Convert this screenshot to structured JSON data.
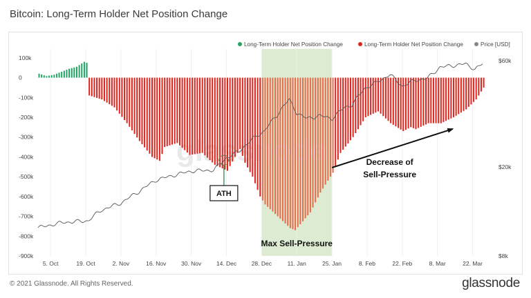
{
  "page": {
    "title": "Bitcoin: Long-Term Holder Net Position Change",
    "footer_copyright": "© 2021 Glassnode. All Rights Reserved.",
    "footer_logo": "glassnode",
    "watermark": "glassnode"
  },
  "colors": {
    "positive": "#1fa463",
    "negative": "#e0231b",
    "negative_highlight": "#ea6a4a",
    "price_line": "#555555",
    "highlight_zone": "#dcebd2",
    "arrow": "#111111",
    "legend_price": "#888888"
  },
  "chart_data": {
    "type": "bar",
    "title": "Bitcoin: Long-Term Holder Net Position Change",
    "x_tick_labels": [
      "5. Oct",
      "19. Oct",
      "2. Nov",
      "16. Nov",
      "30. Nov",
      "14. Dec",
      "28. Dec",
      "11. Jan",
      "25. Jan",
      "8. Feb",
      "22. Feb",
      "8. Mar",
      "22. Mar"
    ],
    "x_tick_days": [
      5,
      19,
      33,
      47,
      61,
      75,
      89,
      103,
      117,
      131,
      145,
      159,
      173
    ],
    "x_range_days": [
      0,
      180
    ],
    "x_day_zero": "30. Sep",
    "y_left": {
      "tick_labels": [
        "100k",
        "0",
        "-100k",
        "-200k",
        "-300k",
        "-400k",
        "-500k",
        "-600k",
        "-700k",
        "-800k",
        "-900k"
      ],
      "tick_values": [
        100000,
        0,
        -100000,
        -200000,
        -300000,
        -400000,
        -500000,
        -600000,
        -700000,
        -800000,
        -900000
      ],
      "range": [
        -900000,
        110000
      ]
    },
    "y_right": {
      "scale": "log",
      "tick_labels": [
        "$60k",
        "$20k",
        "$8k"
      ],
      "tick_values": [
        60000,
        20000,
        8000
      ],
      "range": [
        8000,
        63000
      ]
    },
    "legend_placement": "top-right",
    "series": [
      {
        "name": "Long-Term Holder Net Position Change",
        "sign": "positive",
        "keyframes_day": [
          0,
          3,
          6,
          9,
          12,
          15,
          18,
          20
        ],
        "keyframes_value": [
          20000,
          8000,
          15000,
          30000,
          45000,
          55000,
          80000,
          70000
        ]
      },
      {
        "name": "Long-Term Holder Net Position Change",
        "sign": "negative",
        "keyframes_day": [
          20,
          25,
          30,
          35,
          40,
          45,
          48,
          50,
          55,
          60,
          65,
          70,
          75,
          78,
          80,
          82,
          85,
          88,
          90,
          95,
          100,
          102,
          104,
          108,
          112,
          117,
          120,
          125,
          130,
          135,
          140,
          145,
          148,
          150,
          155,
          160,
          165,
          170,
          174,
          177
        ],
        "keyframes_value": [
          -90000,
          -110000,
          -150000,
          -230000,
          -320000,
          -400000,
          -420000,
          -350000,
          -330000,
          -390000,
          -380000,
          -440000,
          -470000,
          -400000,
          -360000,
          -430000,
          -500000,
          -600000,
          -640000,
          -700000,
          -760000,
          -770000,
          -740000,
          -680000,
          -580000,
          -480000,
          -380000,
          -300000,
          -200000,
          -170000,
          -230000,
          -270000,
          -250000,
          -260000,
          -230000,
          -230000,
          -200000,
          -160000,
          -110000,
          -50000
        ]
      },
      {
        "name": "Price [USD]",
        "axis": "right",
        "keyframes_day": [
          0,
          10,
          20,
          25,
          33,
          40,
          47,
          55,
          61,
          70,
          75,
          80,
          85,
          90,
          95,
          98,
          100,
          103,
          107,
          112,
          117,
          122,
          125,
          130,
          135,
          140,
          145,
          150,
          155,
          160,
          165,
          170,
          174,
          177
        ],
        "keyframes_value": [
          10700,
          11300,
          11500,
          12800,
          13800,
          15500,
          17500,
          18500,
          19200,
          19400,
          22000,
          23500,
          26500,
          29000,
          34000,
          38000,
          40000,
          35000,
          33000,
          34000,
          33000,
          37000,
          38000,
          45000,
          48000,
          52000,
          46000,
          49000,
          50000,
          56000,
          57000,
          58000,
          55000,
          58000
        ]
      }
    ],
    "highlight_zone_days": [
      89,
      117
    ],
    "annotations": [
      {
        "id": "ath",
        "text": "ATH",
        "day": 74
      },
      {
        "id": "max_sell",
        "text": "Max Sell-Pressure",
        "day": 103
      },
      {
        "id": "decrease",
        "text": "Decrease of\nSell-Pressure",
        "day": 140
      }
    ]
  },
  "legend": [
    {
      "label": "Long-Term Holder Net Position Change",
      "swatch": "positive"
    },
    {
      "label": "Long-Term Holder Net Position Change",
      "swatch": "negative"
    },
    {
      "label": "Price [USD]",
      "swatch": "legend_price"
    }
  ]
}
